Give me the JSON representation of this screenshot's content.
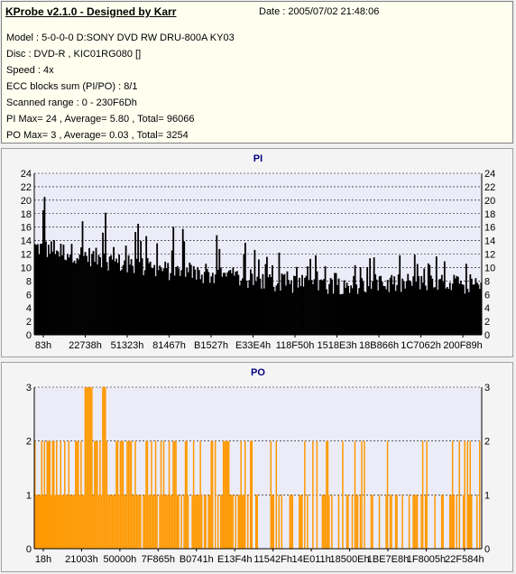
{
  "header": {
    "title": "KProbe v2.1.0 - Designed by Karr",
    "date_text": "Date : 2005/07/02 21:48:06",
    "lines": [
      "Model : 5-0-0-0 D:SONY    DVD RW DRU-800A  KY03",
      "Disc : DVD-R , KIC01RG080  []",
      "Speed : 4x",
      "ECC blocks sum (PI/PO) : 8/1",
      "Scanned range : 0 - 230F6Dh",
      "PI Max= 24 , Average= 5.80 , Total= 96066",
      "PO Max= 3 , Average= 0.03 , Total= 3254"
    ]
  },
  "colors": {
    "pi_bar": "#000000",
    "po_bar": "#ff9900",
    "plot_bg": "#ececf8",
    "title": "#000080"
  },
  "chart_data": [
    {
      "type": "bar",
      "title": "PI",
      "ylim": [
        0,
        24
      ],
      "yticks": [
        0,
        2,
        4,
        6,
        8,
        10,
        12,
        14,
        16,
        18,
        20,
        22,
        24
      ],
      "x_tick_labels": [
        "83h",
        "22738h",
        "51323h",
        "81467h",
        "B1527h",
        "E33E4h",
        "118F50h",
        "1518E3h",
        "18B866h",
        "1C7062h",
        "200F89h"
      ],
      "grid": true,
      "profile": [
        {
          "pos": 0.0,
          "base": 13,
          "peak": 23
        },
        {
          "pos": 0.1,
          "base": 12,
          "peak": 21
        },
        {
          "pos": 0.2,
          "base": 10.5,
          "peak": 19
        },
        {
          "pos": 0.3,
          "base": 9.5,
          "peak": 17
        },
        {
          "pos": 0.45,
          "base": 8.5,
          "peak": 14
        },
        {
          "pos": 0.6,
          "base": 7.5,
          "peak": 12
        },
        {
          "pos": 0.75,
          "base": 7.5,
          "peak": 12
        },
        {
          "pos": 0.9,
          "base": 7.5,
          "peak": 12
        },
        {
          "pos": 1.0,
          "base": 7.5,
          "peak": 11
        }
      ]
    },
    {
      "type": "bar",
      "title": "PO",
      "ylim": [
        0,
        3
      ],
      "yticks": [
        0,
        1,
        2,
        3
      ],
      "x_tick_labels": [
        "18h",
        "21003h",
        "50000h",
        "7F865h",
        "B0741h",
        "E13F4h",
        "11542Fh",
        "14E011h",
        "18500Eh",
        "1BE7E8h",
        "1F8005h",
        "22F584h"
      ],
      "grid": true,
      "profile": [
        {
          "pos": 0.0,
          "p2": 0.45,
          "p1": 0.95
        },
        {
          "pos": 0.3,
          "p2": 0.3,
          "p1": 0.9
        },
        {
          "pos": 0.5,
          "p2": 0.12,
          "p1": 0.55
        },
        {
          "pos": 1.0,
          "p2": 0.1,
          "p1": 0.4
        }
      ],
      "peaks3": [
        0.115,
        0.125,
        0.155
      ]
    }
  ]
}
